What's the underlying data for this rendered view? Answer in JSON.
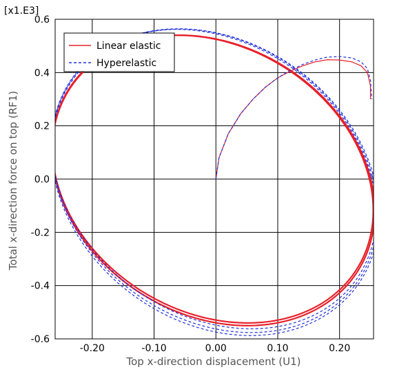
{
  "chart_data": {
    "type": "line",
    "scale_label": "[x1.E3]",
    "xlabel": "Top x-direction displacement (U1)",
    "ylabel": "Total x-direction force on top (RF1)",
    "xlim": [
      -0.26,
      0.255
    ],
    "ylim": [
      -0.6,
      0.6
    ],
    "xticks": [
      -0.2,
      -0.1,
      0.0,
      0.1,
      0.2
    ],
    "xtick_labels": [
      "-0.20",
      "-0.10",
      "0.00",
      "0.10",
      "0.20"
    ],
    "yticks": [
      0.6,
      0.4,
      0.2,
      0.0,
      -0.2,
      -0.4,
      -0.6
    ],
    "ytick_labels": [
      "0.6",
      "0.4",
      "0.2",
      "0.0",
      "-0.2",
      "-0.4",
      "-0.6"
    ],
    "grid": true,
    "legend_position": "top-left",
    "series": [
      {
        "name": "Linear elastic",
        "color": "#e8202a",
        "style": "solid",
        "initial_loading": [
          [
            0.0,
            0.0
          ],
          [
            0.005,
            0.08
          ],
          [
            0.02,
            0.17
          ],
          [
            0.04,
            0.245
          ],
          [
            0.06,
            0.3
          ],
          [
            0.08,
            0.345
          ],
          [
            0.1,
            0.38
          ],
          [
            0.12,
            0.405
          ],
          [
            0.14,
            0.425
          ],
          [
            0.16,
            0.44
          ],
          [
            0.18,
            0.448
          ],
          [
            0.2,
            0.447
          ],
          [
            0.22,
            0.44
          ],
          [
            0.235,
            0.425
          ],
          [
            0.245,
            0.4
          ],
          [
            0.25,
            0.35
          ],
          [
            0.25,
            0.3
          ]
        ],
        "cycles": [
          {
            "cx": -0.005,
            "cy": 0.0,
            "ax": 0.252,
            "ay": 0.012,
            "bx": 0.062,
            "by": -0.54
          },
          {
            "cx": -0.004,
            "cy": -0.005,
            "ax": 0.253,
            "ay": 0.017,
            "bx": 0.063,
            "by": -0.545
          }
        ]
      },
      {
        "name": "Hyperelastic",
        "color": "#1f2fd8",
        "style": "dashed",
        "initial_loading": [
          [
            0.0,
            0.0
          ],
          [
            0.005,
            0.08
          ],
          [
            0.02,
            0.17
          ],
          [
            0.04,
            0.245
          ],
          [
            0.06,
            0.3
          ],
          [
            0.08,
            0.345
          ],
          [
            0.1,
            0.38
          ],
          [
            0.12,
            0.408
          ],
          [
            0.14,
            0.43
          ],
          [
            0.16,
            0.447
          ],
          [
            0.18,
            0.458
          ],
          [
            0.2,
            0.46
          ],
          [
            0.22,
            0.455
          ],
          [
            0.235,
            0.44
          ],
          [
            0.245,
            0.415
          ],
          [
            0.25,
            0.37
          ],
          [
            0.252,
            0.3
          ]
        ],
        "cycles": [
          {
            "cx": -0.003,
            "cy": 0.0,
            "ax": 0.254,
            "ay": 0.012,
            "bx": 0.066,
            "by": -0.562
          },
          {
            "cx": -0.002,
            "cy": -0.006,
            "ax": 0.255,
            "ay": 0.018,
            "bx": 0.067,
            "by": -0.57
          },
          {
            "cx": -0.001,
            "cy": -0.012,
            "ax": 0.256,
            "ay": 0.024,
            "bx": 0.068,
            "by": -0.575
          }
        ]
      }
    ]
  }
}
